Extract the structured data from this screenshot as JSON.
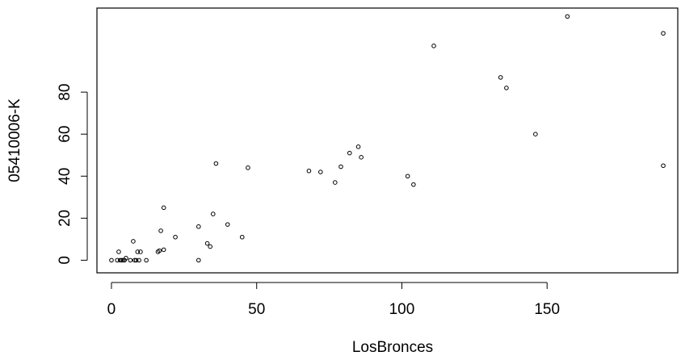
{
  "chart_data": {
    "type": "scatter",
    "title": "",
    "xlabel": "LosBronces",
    "ylabel": "05410006-K",
    "xlim": [
      -5,
      195
    ],
    "ylim": [
      -6,
      120
    ],
    "x_ticks": [
      0,
      50,
      100,
      150
    ],
    "y_ticks": [
      0,
      20,
      40,
      60,
      80
    ],
    "x_tick_labels": [
      "0",
      "50",
      "100",
      "150"
    ],
    "y_tick_labels": [
      "0",
      "20",
      "40",
      "60",
      "80"
    ],
    "grid": false,
    "legend": "none",
    "point_color": "#000000",
    "points": [
      {
        "x": 0,
        "y": 0
      },
      {
        "x": 2,
        "y": 0
      },
      {
        "x": 2.5,
        "y": 4
      },
      {
        "x": 3,
        "y": 0
      },
      {
        "x": 3.5,
        "y": 0
      },
      {
        "x": 4,
        "y": 0
      },
      {
        "x": 4.5,
        "y": 0
      },
      {
        "x": 5,
        "y": 1
      },
      {
        "x": 6.5,
        "y": 0
      },
      {
        "x": 7.5,
        "y": 9
      },
      {
        "x": 8,
        "y": 0
      },
      {
        "x": 8.5,
        "y": 0
      },
      {
        "x": 9,
        "y": 4
      },
      {
        "x": 9.5,
        "y": 0
      },
      {
        "x": 10,
        "y": 4
      },
      {
        "x": 12,
        "y": 0
      },
      {
        "x": 16,
        "y": 4
      },
      {
        "x": 16.5,
        "y": 4.5
      },
      {
        "x": 17,
        "y": 14
      },
      {
        "x": 18,
        "y": 5
      },
      {
        "x": 18,
        "y": 25
      },
      {
        "x": 22,
        "y": 11
      },
      {
        "x": 30,
        "y": 0
      },
      {
        "x": 30,
        "y": 16
      },
      {
        "x": 33,
        "y": 8
      },
      {
        "x": 34,
        "y": 6.5
      },
      {
        "x": 35,
        "y": 22
      },
      {
        "x": 36,
        "y": 46
      },
      {
        "x": 40,
        "y": 17
      },
      {
        "x": 45,
        "y": 11
      },
      {
        "x": 47,
        "y": 44
      },
      {
        "x": 68,
        "y": 42.5
      },
      {
        "x": 72,
        "y": 42
      },
      {
        "x": 77,
        "y": 37
      },
      {
        "x": 79,
        "y": 44.5
      },
      {
        "x": 82,
        "y": 51
      },
      {
        "x": 85,
        "y": 54
      },
      {
        "x": 86,
        "y": 49
      },
      {
        "x": 102,
        "y": 40
      },
      {
        "x": 104,
        "y": 36
      },
      {
        "x": 111,
        "y": 102
      },
      {
        "x": 134,
        "y": 87
      },
      {
        "x": 136,
        "y": 82
      },
      {
        "x": 146,
        "y": 60
      },
      {
        "x": 157,
        "y": 116
      },
      {
        "x": 190,
        "y": 108
      },
      {
        "x": 190,
        "y": 45
      }
    ]
  }
}
